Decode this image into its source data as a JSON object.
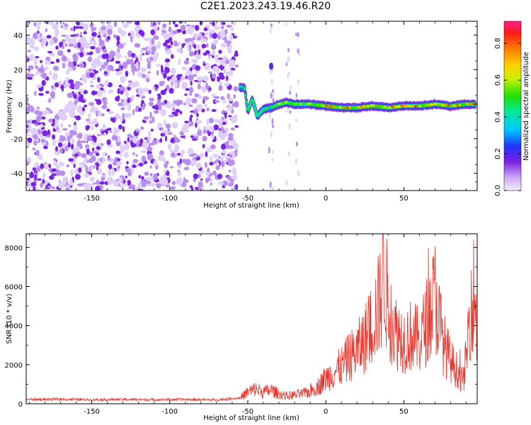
{
  "title": "C2E1.2023.243.19.46.R20",
  "colors": {
    "signal": "#e8342b",
    "noise": "#8a2be2",
    "axis": "#000000"
  },
  "chart_data": [
    {
      "type": "heatmap",
      "xlabel": "Height of straight line (km)",
      "ylabel": "Frequency (Hz)",
      "xlim": [
        -192,
        97
      ],
      "ylim": [
        -50,
        48
      ],
      "x_ticks": [
        -150,
        -100,
        -50,
        0,
        50
      ],
      "x_tick_labels": [
        "-150",
        "-100",
        "-50",
        "0",
        "50"
      ],
      "y_ticks": [
        -40,
        -20,
        0,
        20,
        40
      ],
      "y_tick_labels": [
        "-40",
        "-20",
        "0",
        "20",
        "40"
      ],
      "colorbar": {
        "label": "Normalized spectral amplitude",
        "range": [
          0,
          0.92
        ],
        "ticks": [
          0.0,
          0.2,
          0.4,
          0.6,
          0.8
        ],
        "tick_labels": [
          "0.0",
          "0.2",
          "0.4",
          "0.6",
          "0.8"
        ]
      },
      "signal_track": [
        {
          "x": -55,
          "y": 10,
          "amp": 0.35
        },
        {
          "x": -52,
          "y": 9,
          "amp": 0.45
        },
        {
          "x": -50,
          "y": -4,
          "amp": 0.55
        },
        {
          "x": -47,
          "y": 3,
          "amp": 0.45
        },
        {
          "x": -44,
          "y": -7,
          "amp": 0.4
        },
        {
          "x": -40,
          "y": -3,
          "amp": 0.5
        },
        {
          "x": -35,
          "y": -2,
          "amp": 0.5
        },
        {
          "x": -30,
          "y": 0,
          "amp": 0.6
        },
        {
          "x": -25,
          "y": 1,
          "amp": 0.7
        },
        {
          "x": -20,
          "y": 0,
          "amp": 0.6
        },
        {
          "x": -10,
          "y": 0,
          "amp": 0.75
        },
        {
          "x": 0,
          "y": -1,
          "amp": 0.85
        },
        {
          "x": 10,
          "y": -2,
          "amp": 0.8
        },
        {
          "x": 20,
          "y": -2,
          "amp": 0.8
        },
        {
          "x": 30,
          "y": -1,
          "amp": 0.85
        },
        {
          "x": 40,
          "y": -2,
          "amp": 0.85
        },
        {
          "x": 50,
          "y": -1,
          "amp": 0.85
        },
        {
          "x": 60,
          "y": -1,
          "amp": 0.85
        },
        {
          "x": 70,
          "y": 0,
          "amp": 0.8
        },
        {
          "x": 80,
          "y": -1,
          "amp": 0.85
        },
        {
          "x": 90,
          "y": 0,
          "amp": 0.8
        },
        {
          "x": 96,
          "y": 0,
          "amp": 0.75
        }
      ],
      "noise_region": {
        "x_range": [
          -192,
          -57
        ],
        "y_range": [
          -50,
          48
        ]
      }
    },
    {
      "type": "line",
      "xlabel": "Height of straight line (km)",
      "ylabel": "SNR (10 * v/v)",
      "xlim": [
        -192,
        97
      ],
      "ylim": [
        0,
        8700
      ],
      "x_ticks": [
        -150,
        -100,
        -50,
        0,
        50
      ],
      "x_tick_labels": [
        "-150",
        "-100",
        "-50",
        "0",
        "50"
      ],
      "y_ticks": [
        0,
        2000,
        4000,
        6000,
        8000
      ],
      "y_tick_labels": [
        "0",
        "2000",
        "4000",
        "6000",
        "8000"
      ],
      "series": [
        {
          "x": [
            -192,
            -170,
            -150,
            -130,
            -110,
            -90,
            -70,
            -55,
            -50,
            -45,
            -40,
            -35,
            -30,
            -25,
            -20,
            -15,
            -10,
            -5,
            0,
            5,
            10,
            15,
            20,
            25,
            30,
            35,
            37,
            40,
            45,
            50,
            55,
            60,
            65,
            70,
            75,
            80,
            85,
            88,
            90,
            93,
            95,
            97
          ],
          "values": [
            220,
            230,
            210,
            220,
            210,
            220,
            200,
            300,
            600,
            750,
            600,
            700,
            500,
            400,
            450,
            500,
            650,
            900,
            1300,
            1600,
            1900,
            2400,
            2700,
            3300,
            4200,
            5300,
            7200,
            4700,
            3700,
            3300,
            3500,
            3200,
            4300,
            5500,
            3200,
            2200,
            1600,
            1100,
            2400,
            5300,
            5700,
            3600
          ]
        }
      ]
    }
  ]
}
